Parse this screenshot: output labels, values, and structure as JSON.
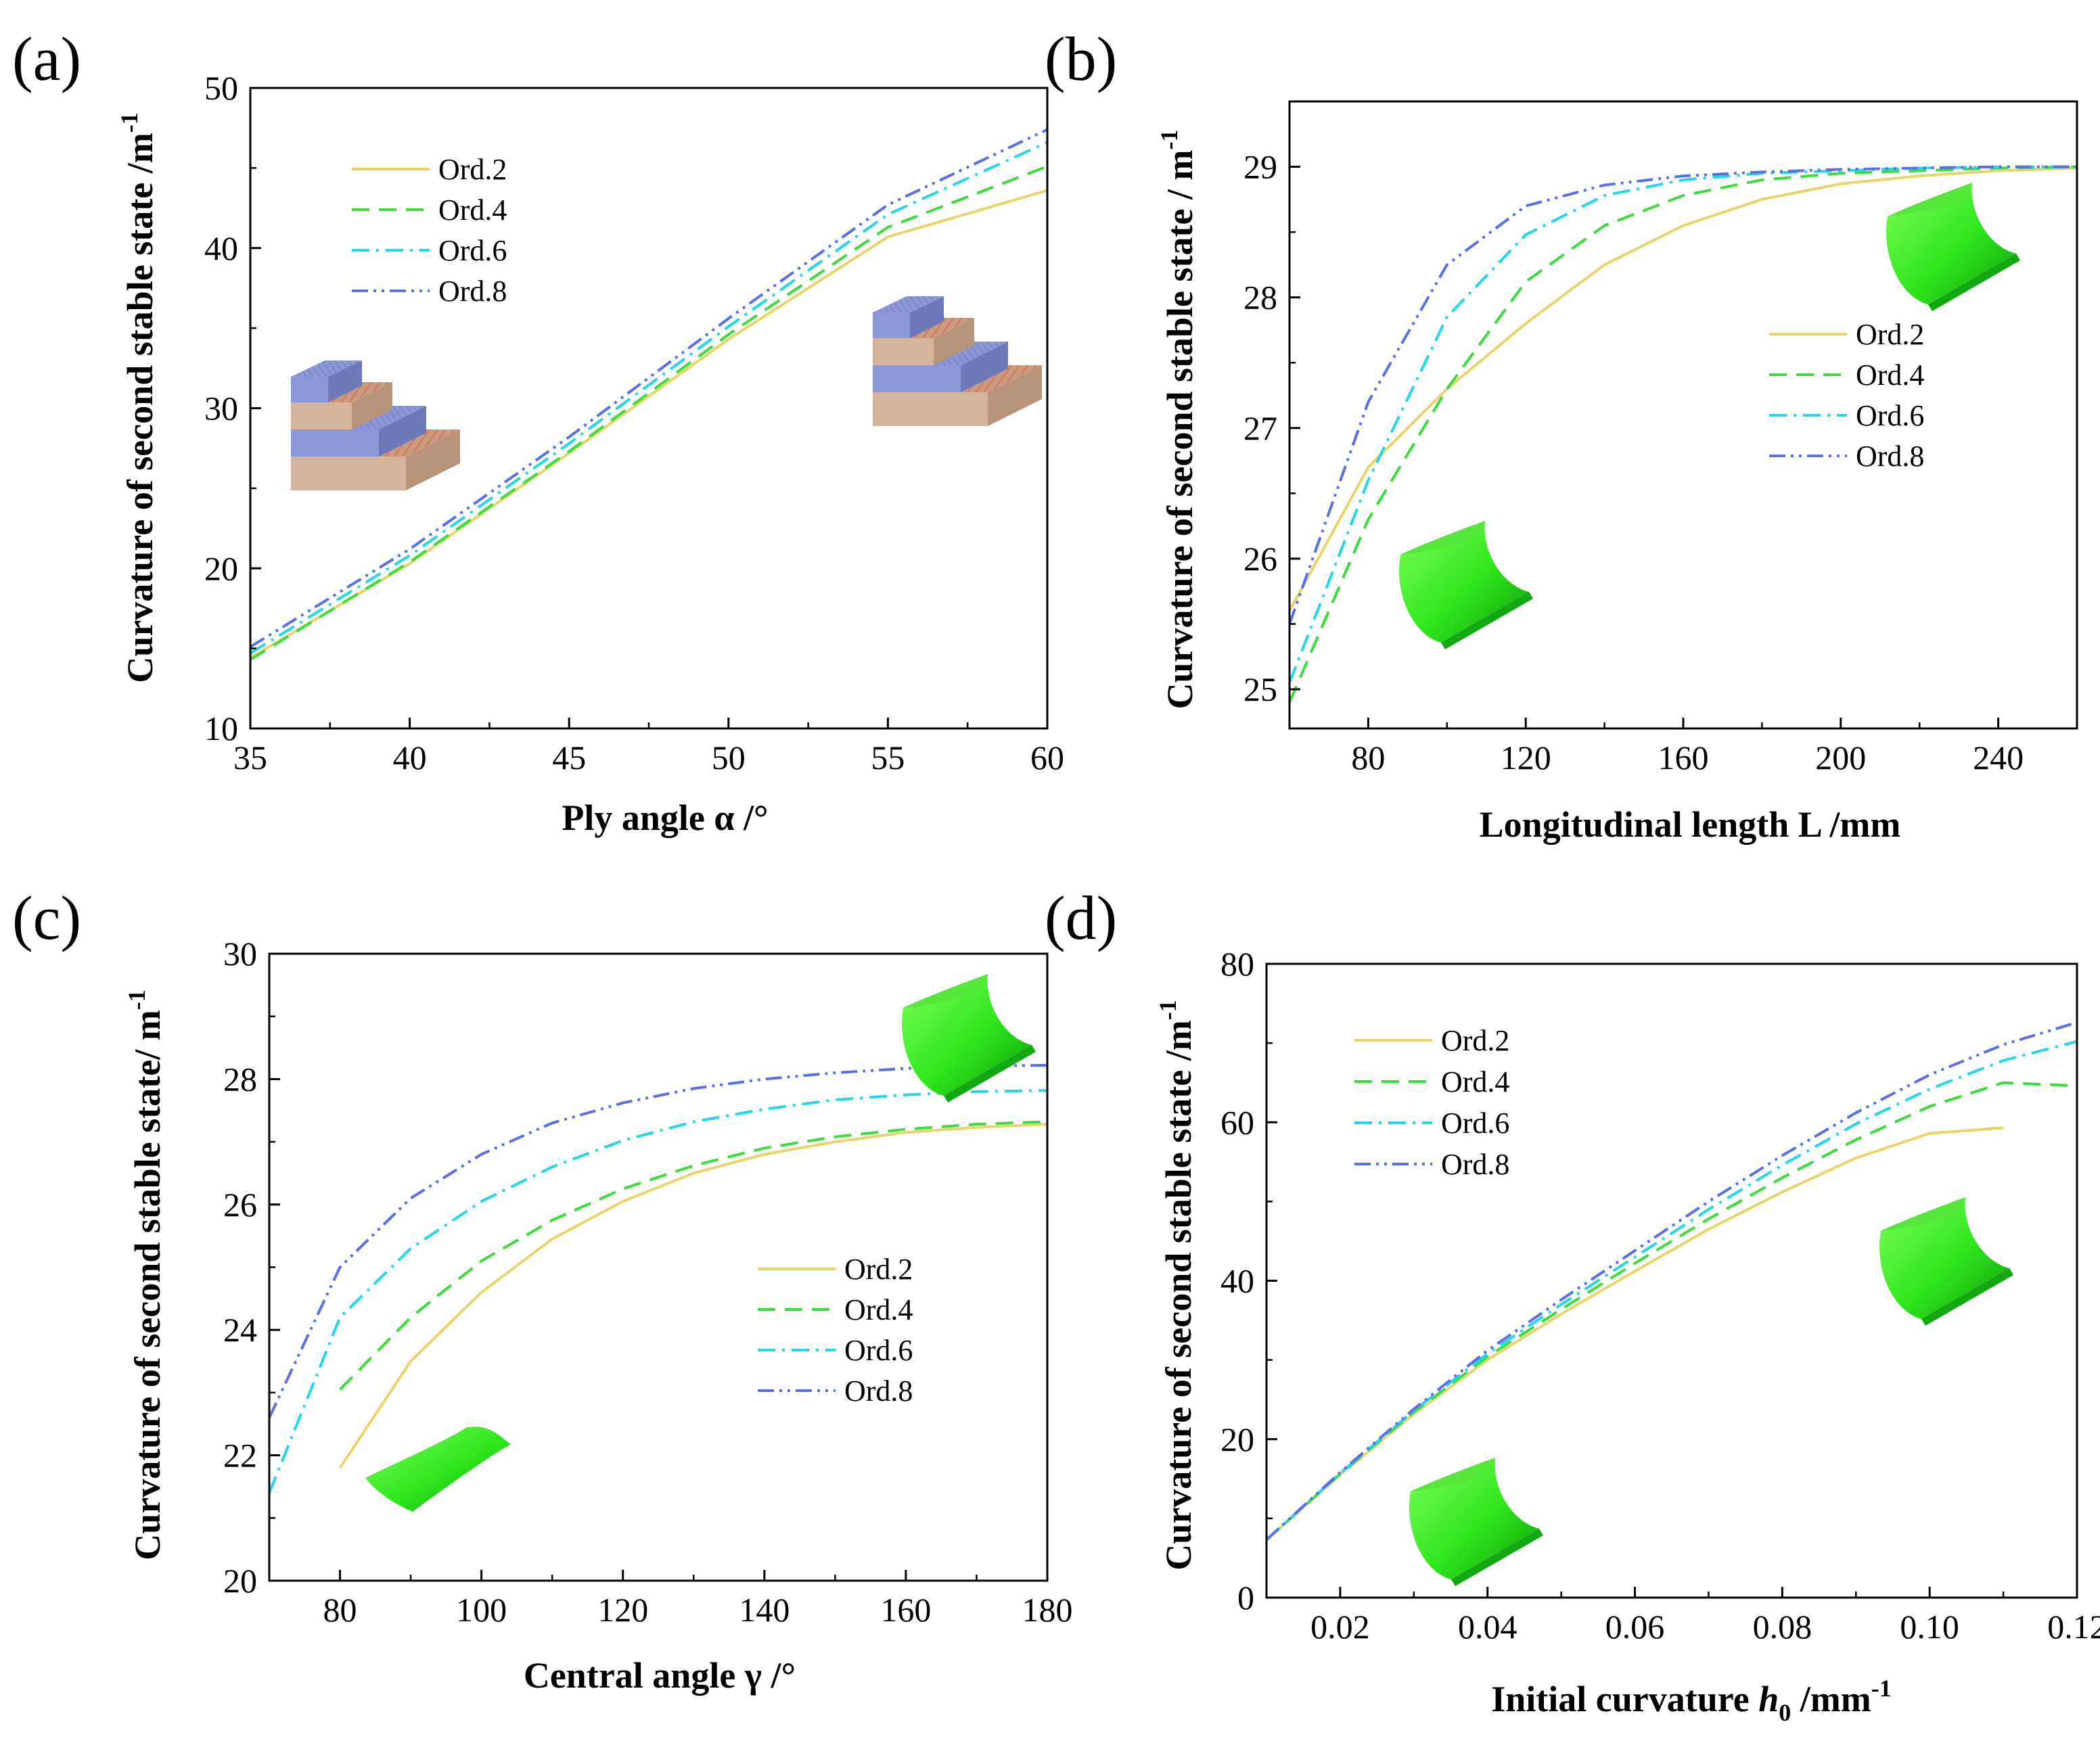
{
  "figure": {
    "panels": [
      {
        "label": "(a)",
        "chart_data": {
          "type": "line",
          "xlabel": "Ply angle α /°",
          "ylabel_main": "Curvature of second stable state /m",
          "ylabel_sup": "-1",
          "xlim": [
            35,
            60
          ],
          "ylim": [
            10,
            50
          ],
          "xticks": [
            35,
            40,
            45,
            50,
            55,
            60
          ],
          "xtick_labels": [
            "35",
            "40",
            "45",
            "50",
            "55",
            "60"
          ],
          "yticks": [
            10,
            20,
            30,
            40,
            50
          ],
          "ytick_labels": [
            "10",
            "20",
            "30",
            "40",
            "50"
          ],
          "x": [
            35,
            40,
            45,
            50,
            55,
            60
          ],
          "series": [
            {
              "name": "Ord.2",
              "color": "#e8d46a",
              "dash": "solid",
              "values": [
                14.4,
                20.3,
                27.2,
                34.3,
                40.7,
                43.6
              ]
            },
            {
              "name": "Ord.4",
              "color": "#3ddc3d",
              "dash": "dash",
              "values": [
                14.3,
                20.4,
                27.3,
                34.6,
                41.3,
                45.1
              ]
            },
            {
              "name": "Ord.6",
              "color": "#22d7e6",
              "dash": "dashdot",
              "values": [
                14.7,
                20.8,
                27.8,
                35.1,
                42.1,
                46.6
              ]
            },
            {
              "name": "Ord.8",
              "color": "#5a6fe6",
              "dash": "dashdotdot",
              "values": [
                15.1,
                21.2,
                28.2,
                35.6,
                42.7,
                47.4
              ]
            }
          ],
          "legend": "upper-left",
          "insets": [
            "laminate-stack-icon",
            "laminate-stack-icon"
          ]
        }
      },
      {
        "label": "(b)",
        "chart_data": {
          "type": "line",
          "xlabel": "Longitudinal length L /mm",
          "ylabel_main": "Curvature of second stable state / m",
          "ylabel_sup": "-1",
          "xlim": [
            60,
            260
          ],
          "ylim": [
            24.7,
            29.5
          ],
          "xticks": [
            80,
            120,
            160,
            200,
            240
          ],
          "xtick_labels": [
            "80",
            "120",
            "160",
            "200",
            "240"
          ],
          "yticks": [
            25,
            26,
            27,
            28,
            29
          ],
          "ytick_labels": [
            "25",
            "26",
            "27",
            "28",
            "29"
          ],
          "x": [
            60,
            80,
            100,
            120,
            140,
            160,
            180,
            200,
            220,
            240,
            260
          ],
          "series": [
            {
              "name": "Ord.2",
              "color": "#e8d46a",
              "dash": "solid",
              "values": [
                25.6,
                26.7,
                27.3,
                27.8,
                28.25,
                28.55,
                28.75,
                28.87,
                28.93,
                28.97,
                28.99
              ]
            },
            {
              "name": "Ord.4",
              "color": "#3ddc3d",
              "dash": "dash",
              "values": [
                24.9,
                26.3,
                27.3,
                28.12,
                28.55,
                28.78,
                28.9,
                28.95,
                28.97,
                28.99,
                29.0
              ]
            },
            {
              "name": "Ord.6",
              "color": "#22d7e6",
              "dash": "dashdot",
              "values": [
                25.05,
                26.6,
                27.85,
                28.48,
                28.78,
                28.9,
                28.95,
                28.97,
                28.99,
                29.0,
                29.0
              ]
            },
            {
              "name": "Ord.8",
              "color": "#5a6fe6",
              "dash": "dashdotdot",
              "values": [
                25.5,
                27.2,
                28.25,
                28.7,
                28.86,
                28.93,
                28.96,
                28.98,
                28.99,
                29.0,
                29.0
              ]
            }
          ],
          "legend": "center-right",
          "insets": [
            "cylindrical-shell-icon",
            "cylindrical-shell-icon"
          ]
        }
      },
      {
        "label": "(c)",
        "chart_data": {
          "type": "line",
          "xlabel": "Central angle γ /°",
          "ylabel_main": "Curvature of second stable state/ m",
          "ylabel_sup": "-1",
          "xlim": [
            70,
            180
          ],
          "ylim": [
            20,
            30
          ],
          "xticks": [
            80,
            100,
            120,
            140,
            160,
            180
          ],
          "xtick_labels": [
            "80",
            "100",
            "120",
            "140",
            "160",
            "180"
          ],
          "yticks": [
            20,
            22,
            24,
            26,
            28,
            30
          ],
          "ytick_labels": [
            "20",
            "22",
            "24",
            "26",
            "28",
            "30"
          ],
          "series": [
            {
              "name": "Ord.2",
              "color": "#e8d46a",
              "dash": "solid",
              "x": [
                80,
                90,
                100,
                110,
                120,
                130,
                140,
                150,
                160,
                170,
                180
              ],
              "values": [
                21.8,
                23.5,
                24.6,
                25.45,
                26.05,
                26.5,
                26.8,
                27.0,
                27.15,
                27.23,
                27.28
              ]
            },
            {
              "name": "Ord.4",
              "color": "#3ddc3d",
              "dash": "dash",
              "x": [
                80,
                90,
                100,
                110,
                120,
                130,
                140,
                150,
                160,
                170,
                180
              ],
              "values": [
                23.05,
                24.2,
                25.1,
                25.75,
                26.25,
                26.62,
                26.9,
                27.08,
                27.2,
                27.28,
                27.32
              ]
            },
            {
              "name": "Ord.6",
              "color": "#22d7e6",
              "dash": "dashdot",
              "x": [
                70,
                80,
                90,
                100,
                110,
                120,
                130,
                140,
                150,
                160,
                170,
                180
              ],
              "values": [
                21.4,
                24.2,
                25.3,
                26.05,
                26.6,
                27.02,
                27.32,
                27.52,
                27.67,
                27.75,
                27.8,
                27.82
              ]
            },
            {
              "name": "Ord.8",
              "color": "#5a6fe6",
              "dash": "dashdotdot",
              "x": [
                70,
                80,
                90,
                100,
                110,
                120,
                130,
                140,
                150,
                160,
                170,
                180
              ],
              "values": [
                22.6,
                25.0,
                26.1,
                26.8,
                27.3,
                27.62,
                27.85,
                28.0,
                28.1,
                28.17,
                28.21,
                28.22
              ]
            }
          ],
          "legend": "center-right",
          "insets": [
            "cylindrical-shell-icon",
            "cylindrical-shell-icon"
          ]
        }
      },
      {
        "label": "(d)",
        "chart_data": {
          "type": "line",
          "xlabel_main": "Initial curvature ",
          "xlabel_var": "h",
          "xlabel_sub": "0",
          "xlabel_unit": " /mm",
          "xlabel_sup": "-1",
          "ylabel_main": "Curvature of second stable state /m",
          "ylabel_sup": "-1",
          "xlim": [
            0.01,
            0.12
          ],
          "ylim": [
            0,
            80
          ],
          "xticks": [
            0.02,
            0.04,
            0.06,
            0.08,
            0.1,
            0.12
          ],
          "xtick_labels": [
            "0.02",
            "0.04",
            "0.06",
            "0.08",
            "0.10",
            "0.12"
          ],
          "yticks": [
            0,
            20,
            40,
            60,
            80
          ],
          "ytick_labels": [
            "0",
            "20",
            "40",
            "60",
            "80"
          ],
          "series": [
            {
              "name": "Ord.2",
              "color": "#e8d46a",
              "dash": "solid",
              "x": [
                0.01,
                0.02,
                0.03,
                0.04,
                0.05,
                0.06,
                0.07,
                0.08,
                0.09,
                0.1,
                0.11
              ],
              "values": [
                7.3,
                15.5,
                23.2,
                30.0,
                35.8,
                41.2,
                46.5,
                51.2,
                55.5,
                58.6,
                59.3
              ]
            },
            {
              "name": "Ord.4",
              "color": "#3ddc3d",
              "dash": "dash",
              "x": [
                0.01,
                0.02,
                0.03,
                0.04,
                0.05,
                0.06,
                0.07,
                0.08,
                0.09,
                0.1,
                0.11,
                0.12
              ],
              "values": [
                7.3,
                15.6,
                23.4,
                30.4,
                36.4,
                42.2,
                47.8,
                53.0,
                57.8,
                62.0,
                65.0,
                64.6
              ]
            },
            {
              "name": "Ord.6",
              "color": "#22d7e6",
              "dash": "dashdot",
              "x": [
                0.01,
                0.02,
                0.03,
                0.04,
                0.05,
                0.06,
                0.07,
                0.08,
                0.09,
                0.1,
                0.11,
                0.12
              ],
              "values": [
                7.3,
                15.7,
                23.6,
                30.8,
                37.0,
                43.0,
                49.0,
                54.6,
                59.8,
                64.2,
                67.8,
                70.2
              ]
            },
            {
              "name": "Ord.8",
              "color": "#5a6fe6",
              "dash": "dashdotdot",
              "x": [
                0.01,
                0.02,
                0.03,
                0.04,
                0.05,
                0.06,
                0.07,
                0.08,
                0.09,
                0.1,
                0.11,
                0.12
              ],
              "values": [
                7.3,
                15.8,
                23.8,
                31.2,
                37.6,
                43.8,
                50.0,
                55.8,
                61.2,
                66.0,
                69.8,
                72.6
              ]
            }
          ],
          "legend": "upper-left",
          "insets": [
            "cylindrical-shell-icon",
            "cylindrical-shell-icon"
          ]
        }
      }
    ]
  }
}
